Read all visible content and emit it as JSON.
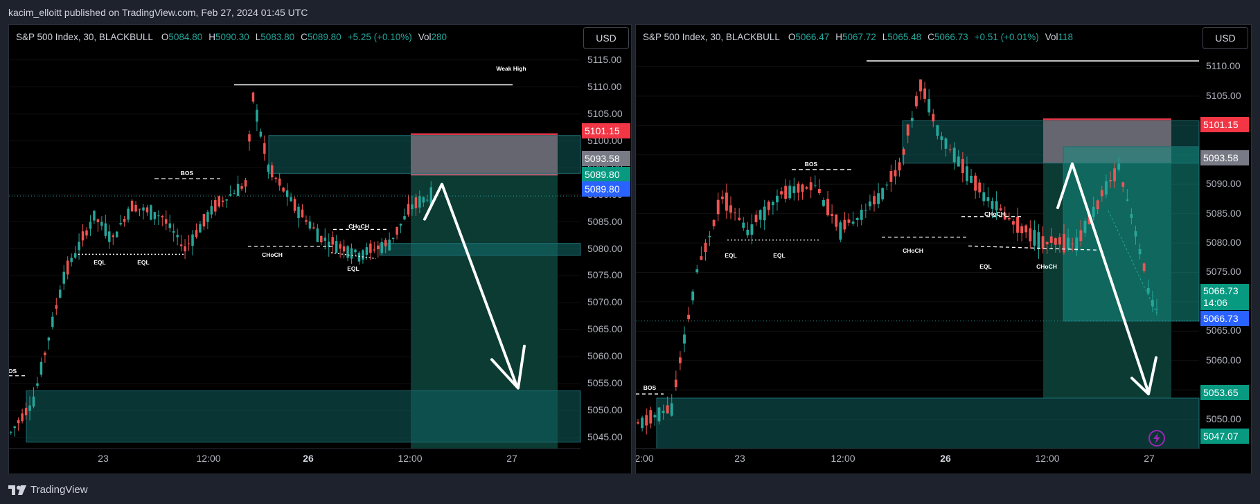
{
  "header": {
    "published_by": "kacim_elloitt published on TradingView.com, Feb 27, 2024 01:45 UTC"
  },
  "footer": {
    "brand": "TradingView",
    "logo_icon": "tradingview-logo-icon"
  },
  "colors": {
    "up": "#26a69a",
    "down": "#ef5350",
    "background": "#000000",
    "grid": "#1a1a1a"
  },
  "chart_data": [
    {
      "type": "candlestick",
      "legend": {
        "symbol": "S&P 500 Index, 30, BLACKBULL",
        "open": "5084.80",
        "high": "5090.30",
        "low": "5083.80",
        "close": "5089.80",
        "change": "+5.25 (+0.10%)",
        "volume": "280"
      },
      "currency": "USD",
      "y_ticks": [
        "5115.00",
        "5110.00",
        "5105.00",
        "5100.00",
        "5095.00",
        "5090.00",
        "5085.00",
        "5080.00",
        "5075.00",
        "5070.00",
        "5065.00",
        "5060.00",
        "5055.00",
        "5050.00",
        "5045.00"
      ],
      "ylim": [
        5043,
        5117
      ],
      "x_ticks": [
        {
          "label": "23",
          "bold": false
        },
        {
          "label": "12:00",
          "bold": false
        },
        {
          "label": "26",
          "bold": true
        },
        {
          "label": "12:00",
          "bold": false
        },
        {
          "label": "27",
          "bold": false
        }
      ],
      "price_labels": [
        {
          "value": "5101.15",
          "color": "#f23645"
        },
        {
          "value": "5093.58",
          "color": "#787b86"
        },
        {
          "value": "5089.80",
          "color": "#089981"
        },
        {
          "value": "5089.80",
          "color": "#2962ff"
        }
      ],
      "annotations": [
        "Weak High",
        "BOS",
        "EQL",
        "EQL",
        "CHoCH",
        "CHoCH",
        "EQL",
        "OS"
      ],
      "current_price": 5089.8
    },
    {
      "type": "candlestick",
      "legend": {
        "symbol": "S&P 500 Index, 30, BLACKBULL",
        "open": "5066.47",
        "high": "5067.72",
        "low": "5065.48",
        "close": "5066.73",
        "change": "+0.51 (+0.01%)",
        "volume": "118"
      },
      "currency": "USD",
      "y_ticks": [
        "5110.00",
        "5105.00",
        "5100.00",
        "5095.00",
        "5090.00",
        "5085.00",
        "5080.00",
        "5075.00",
        "5070.00",
        "5065.00",
        "5060.00",
        "5055.00",
        "5050.00"
      ],
      "ylim": [
        5045,
        5113
      ],
      "x_ticks": [
        {
          "label": "2:00",
          "bold": false
        },
        {
          "label": "23",
          "bold": false
        },
        {
          "label": "12:00",
          "bold": false
        },
        {
          "label": "26",
          "bold": true
        },
        {
          "label": "12:00",
          "bold": false
        },
        {
          "label": "27",
          "bold": false
        }
      ],
      "price_labels": [
        {
          "value": "5101.15",
          "color": "#f23645"
        },
        {
          "value": "5093.58",
          "color": "#787b86"
        },
        {
          "value": "5066.73",
          "sub": "14:06",
          "color": "#089981"
        },
        {
          "value": "5066.73",
          "color": "#2962ff"
        },
        {
          "value": "5053.65",
          "color": "#089981"
        },
        {
          "value": "5047.07",
          "color": "#089981"
        }
      ],
      "annotations": [
        "BOS",
        "BOS",
        "EQL",
        "EQL",
        "CHoCH",
        "CHoCH",
        "EQL",
        "CHoCH"
      ],
      "current_price": 5066.73
    }
  ]
}
